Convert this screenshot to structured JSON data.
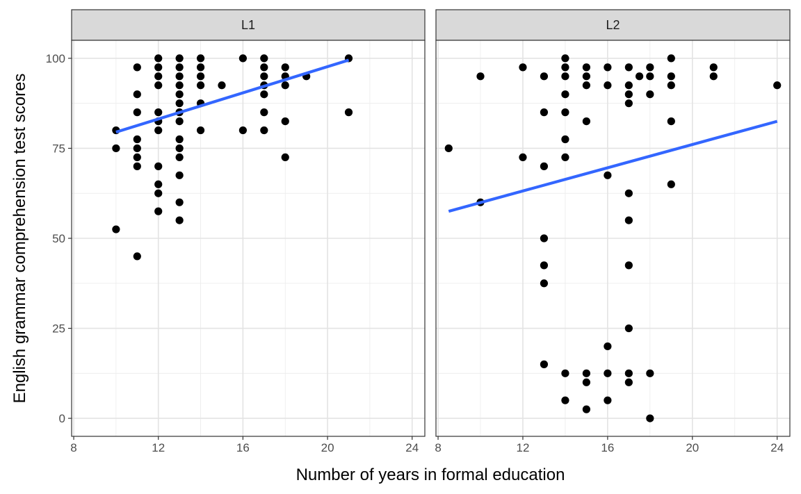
{
  "chart_data": {
    "type": "scatter",
    "xlabel": "Number of years in formal education",
    "ylabel": "English grammar comprehension test scores",
    "xlim": [
      7.9,
      24.6
    ],
    "ylim": [
      -5,
      105
    ],
    "x_ticks": [
      8,
      12,
      16,
      20,
      24
    ],
    "y_ticks": [
      0,
      25,
      50,
      75,
      100
    ],
    "x_minor": [
      10,
      14,
      18,
      22
    ],
    "y_minor": [
      12.5,
      37.5,
      62.5,
      87.5
    ],
    "grid": true,
    "point_color": "#000000",
    "line_color": "#3366ff",
    "panels": [
      {
        "label": "L1",
        "points": [
          [
            10,
            80
          ],
          [
            10,
            75
          ],
          [
            10,
            52.5
          ],
          [
            11,
            97.5
          ],
          [
            11,
            90
          ],
          [
            11,
            85
          ],
          [
            11,
            77.5
          ],
          [
            11,
            75
          ],
          [
            11,
            72.5
          ],
          [
            11,
            70
          ],
          [
            11,
            45
          ],
          [
            12,
            100
          ],
          [
            12,
            97.5
          ],
          [
            12,
            95
          ],
          [
            12,
            92.5
          ],
          [
            12,
            85
          ],
          [
            12,
            82.5
          ],
          [
            12,
            80
          ],
          [
            12,
            70
          ],
          [
            12,
            65
          ],
          [
            12,
            62.5
          ],
          [
            12,
            57.5
          ],
          [
            13,
            100
          ],
          [
            13,
            97.5
          ],
          [
            13,
            95
          ],
          [
            13,
            92.5
          ],
          [
            13,
            90
          ],
          [
            13,
            87.5
          ],
          [
            13,
            85
          ],
          [
            13,
            82.5
          ],
          [
            13,
            77.5
          ],
          [
            13,
            75
          ],
          [
            13,
            72.5
          ],
          [
            13,
            67.5
          ],
          [
            13,
            60
          ],
          [
            13,
            55
          ],
          [
            14,
            100
          ],
          [
            14,
            97.5
          ],
          [
            14,
            95
          ],
          [
            14,
            92.5
          ],
          [
            14,
            87.5
          ],
          [
            14,
            80
          ],
          [
            15,
            92.5
          ],
          [
            16,
            100
          ],
          [
            16,
            80
          ],
          [
            17,
            100
          ],
          [
            17,
            97.5
          ],
          [
            17,
            95
          ],
          [
            17,
            92.5
          ],
          [
            17,
            90
          ],
          [
            17,
            85
          ],
          [
            17,
            80
          ],
          [
            18,
            97.5
          ],
          [
            18,
            95
          ],
          [
            18,
            92.5
          ],
          [
            18,
            82.5
          ],
          [
            18,
            72.5
          ],
          [
            19,
            95
          ],
          [
            21,
            100
          ],
          [
            21,
            85
          ]
        ],
        "fit": [
          [
            10,
            79.5
          ],
          [
            21,
            99.5
          ]
        ]
      },
      {
        "label": "L2",
        "points": [
          [
            8.5,
            75
          ],
          [
            10,
            95
          ],
          [
            10,
            60
          ],
          [
            12,
            97.5
          ],
          [
            12,
            72.5
          ],
          [
            13,
            95
          ],
          [
            13,
            85
          ],
          [
            13,
            70
          ],
          [
            13,
            50
          ],
          [
            13,
            42.5
          ],
          [
            13,
            37.5
          ],
          [
            13,
            15
          ],
          [
            14,
            100
          ],
          [
            14,
            97.5
          ],
          [
            14,
            95
          ],
          [
            14,
            90
          ],
          [
            14,
            85
          ],
          [
            14,
            77.5
          ],
          [
            14,
            72.5
          ],
          [
            14,
            12.5
          ],
          [
            14,
            5
          ],
          [
            15,
            97.5
          ],
          [
            15,
            95
          ],
          [
            15,
            92.5
          ],
          [
            15,
            82.5
          ],
          [
            15,
            12.5
          ],
          [
            15,
            10
          ],
          [
            15,
            2.5
          ],
          [
            16,
            97.5
          ],
          [
            16,
            92.5
          ],
          [
            16,
            67.5
          ],
          [
            16,
            20
          ],
          [
            16,
            12.5
          ],
          [
            16,
            5
          ],
          [
            17,
            97.5
          ],
          [
            17,
            92.5
          ],
          [
            17,
            90
          ],
          [
            17,
            87.5
          ],
          [
            17,
            62.5
          ],
          [
            17,
            55
          ],
          [
            17,
            42.5
          ],
          [
            17,
            25
          ],
          [
            17,
            12.5
          ],
          [
            17,
            10
          ],
          [
            17.5,
            95
          ],
          [
            18,
            97.5
          ],
          [
            18,
            95
          ],
          [
            18,
            90
          ],
          [
            18,
            12.5
          ],
          [
            18,
            0
          ],
          [
            19,
            100
          ],
          [
            19,
            95
          ],
          [
            19,
            92.5
          ],
          [
            19,
            82.5
          ],
          [
            19,
            65
          ],
          [
            21,
            97.5
          ],
          [
            21,
            95
          ],
          [
            24,
            92.5
          ]
        ],
        "fit": [
          [
            8.5,
            57.5
          ],
          [
            24,
            82.5
          ]
        ]
      }
    ]
  }
}
